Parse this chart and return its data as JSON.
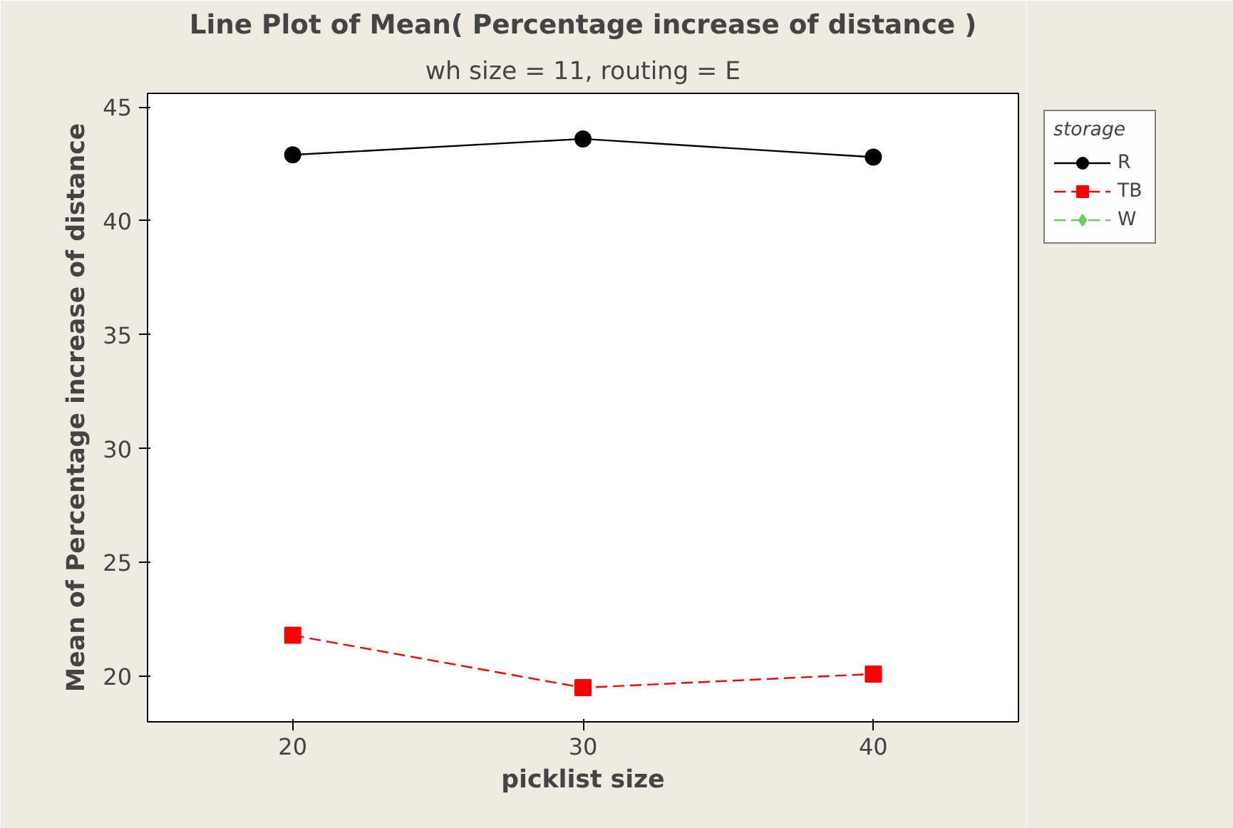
{
  "chart_data": {
    "type": "line",
    "title": "Line Plot of Mean( Percentage increase of distance )",
    "subtitle": "wh size = 11, routing = E",
    "xlabel": "picklist size",
    "ylabel": "Mean of Percentage increase of distance",
    "legend_title": "storage",
    "x": [
      20,
      30,
      40
    ],
    "series": [
      {
        "name": "R",
        "color": "#000000",
        "marker": "circle",
        "line_style": "solid",
        "values": [
          42.9,
          43.6,
          42.8
        ]
      },
      {
        "name": "TB",
        "color": "#ff0000",
        "marker": "square",
        "line_style": "dashed",
        "values": [
          21.8,
          19.5,
          20.1
        ]
      },
      {
        "name": "W",
        "color": "#66cc66",
        "marker": "diamond",
        "line_style": "dashed",
        "values": [
          null,
          null,
          null
        ]
      }
    ],
    "xlim": [
      15,
      45
    ],
    "ylim": [
      18,
      45.6
    ],
    "xticks": [
      20,
      30,
      40
    ],
    "yticks": [
      20,
      25,
      30,
      35,
      40,
      45
    ],
    "grid": false,
    "legend": "top right"
  }
}
